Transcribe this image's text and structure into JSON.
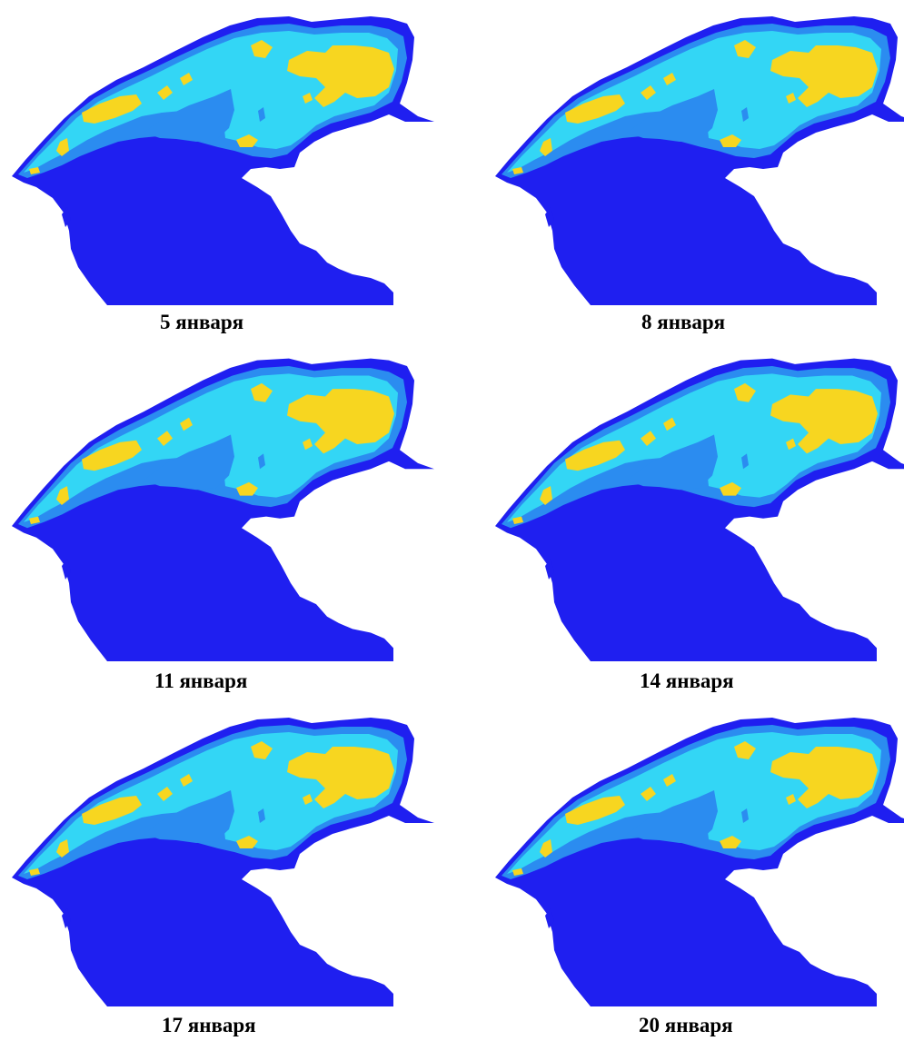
{
  "panels": [
    {
      "caption": "5 января"
    },
    {
      "caption": "8 января"
    },
    {
      "caption": "11 января"
    },
    {
      "caption": "14 января"
    },
    {
      "caption": "17 января"
    },
    {
      "caption": "20 января"
    }
  ],
  "legend_colors": {
    "deep": "#1f1ff0",
    "mid": "#2b8cf0",
    "light": "#33d6f5",
    "high": "#f7d620"
  }
}
